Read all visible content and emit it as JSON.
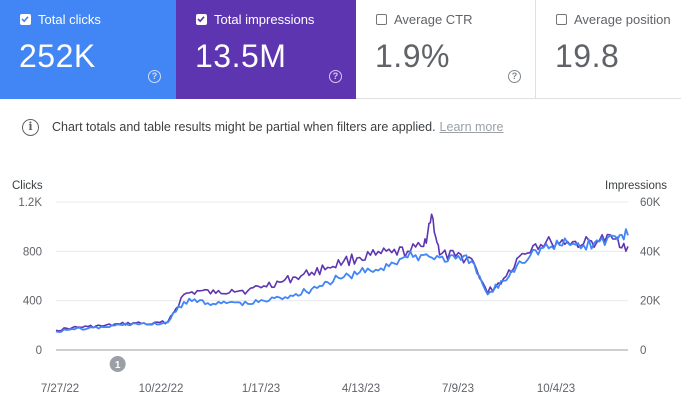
{
  "metrics": {
    "clicks": {
      "label": "Total clicks",
      "value": "252K",
      "checked": true,
      "color": "#4285f4"
    },
    "impressions": {
      "label": "Total impressions",
      "value": "13.5M",
      "checked": true,
      "color": "#5e35b1"
    },
    "ctr": {
      "label": "Average CTR",
      "value": "1.9%",
      "checked": false
    },
    "position": {
      "label": "Average position",
      "value": "19.8",
      "checked": false
    }
  },
  "help_glyph": "?",
  "notice": {
    "icon": "info-icon",
    "glyph": "i",
    "text": "Chart totals and table results might be partial when filters are applied.",
    "link": "Learn more"
  },
  "annotation": {
    "label": "1",
    "date": "2022-09-19"
  },
  "chart_data": {
    "type": "line",
    "left_axis": {
      "title": "Clicks",
      "ticks": [
        0,
        400,
        800,
        1200
      ],
      "tick_labels": [
        "0",
        "400",
        "800",
        "1.2K"
      ],
      "range": [
        0,
        1200
      ]
    },
    "right_axis": {
      "title": "Impressions",
      "ticks": [
        0,
        20000,
        40000,
        60000
      ],
      "tick_labels": [
        "0",
        "20K",
        "40K",
        "60K"
      ],
      "range": [
        0,
        60000
      ]
    },
    "x_range": [
      "2022-07-27",
      "2023-12-10"
    ],
    "x_tick_labels": [
      "7/27/22",
      "10/22/22",
      "1/17/23",
      "4/13/23",
      "7/9/23",
      "10/4/23"
    ],
    "grid": true,
    "series": [
      {
        "name": "Clicks",
        "axis": "left",
        "color": "#4285f4",
        "points": [
          [
            "2022-07-27",
            150
          ],
          [
            "2022-08-10",
            170
          ],
          [
            "2022-08-24",
            175
          ],
          [
            "2022-09-07",
            185
          ],
          [
            "2022-09-21",
            205
          ],
          [
            "2022-10-05",
            215
          ],
          [
            "2022-10-19",
            205
          ],
          [
            "2022-11-02",
            225
          ],
          [
            "2022-11-16",
            390
          ],
          [
            "2022-11-30",
            405
          ],
          [
            "2022-12-14",
            370
          ],
          [
            "2022-12-28",
            390
          ],
          [
            "2023-01-11",
            375
          ],
          [
            "2023-01-25",
            400
          ],
          [
            "2023-02-08",
            425
          ],
          [
            "2023-02-22",
            455
          ],
          [
            "2023-03-08",
            495
          ],
          [
            "2023-03-22",
            550
          ],
          [
            "2023-04-05",
            590
          ],
          [
            "2023-04-19",
            630
          ],
          [
            "2023-05-03",
            650
          ],
          [
            "2023-05-17",
            710
          ],
          [
            "2023-05-31",
            750
          ],
          [
            "2023-06-14",
            770
          ],
          [
            "2023-06-28",
            750
          ],
          [
            "2023-07-12",
            740
          ],
          [
            "2023-07-26",
            720
          ],
          [
            "2023-08-09",
            450
          ],
          [
            "2023-08-23",
            560
          ],
          [
            "2023-09-06",
            720
          ],
          [
            "2023-09-20",
            810
          ],
          [
            "2023-10-04",
            840
          ],
          [
            "2023-10-18",
            870
          ],
          [
            "2023-11-01",
            850
          ],
          [
            "2023-11-15",
            880
          ],
          [
            "2023-11-29",
            920
          ],
          [
            "2023-12-10",
            930
          ]
        ]
      },
      {
        "name": "Impressions",
        "axis": "right",
        "color": "#5e35b1",
        "points": [
          [
            "2022-07-27",
            8000
          ],
          [
            "2022-08-10",
            9000
          ],
          [
            "2022-08-24",
            9500
          ],
          [
            "2022-09-07",
            9800
          ],
          [
            "2022-09-21",
            10500
          ],
          [
            "2022-10-05",
            11000
          ],
          [
            "2022-10-19",
            10500
          ],
          [
            "2022-11-02",
            11500
          ],
          [
            "2022-11-16",
            22500
          ],
          [
            "2022-11-30",
            24000
          ],
          [
            "2022-12-14",
            23000
          ],
          [
            "2022-12-28",
            24500
          ],
          [
            "2023-01-11",
            24000
          ],
          [
            "2023-01-25",
            26000
          ],
          [
            "2023-02-08",
            27500
          ],
          [
            "2023-02-22",
            29500
          ],
          [
            "2023-03-08",
            31500
          ],
          [
            "2023-03-22",
            33500
          ],
          [
            "2023-04-05",
            36000
          ],
          [
            "2023-04-19",
            37500
          ],
          [
            "2023-05-03",
            38500
          ],
          [
            "2023-05-17",
            39500
          ],
          [
            "2023-05-31",
            40000
          ],
          [
            "2023-06-14",
            42000
          ],
          [
            "2023-06-21",
            55000
          ],
          [
            "2023-06-28",
            38500
          ],
          [
            "2023-07-12",
            38000
          ],
          [
            "2023-07-26",
            37000
          ],
          [
            "2023-08-09",
            23000
          ],
          [
            "2023-08-23",
            29000
          ],
          [
            "2023-09-06",
            38000
          ],
          [
            "2023-09-20",
            43000
          ],
          [
            "2023-10-04",
            43500
          ],
          [
            "2023-10-18",
            44000
          ],
          [
            "2023-11-01",
            43000
          ],
          [
            "2023-11-15",
            44500
          ],
          [
            "2023-11-29",
            45000
          ],
          [
            "2023-12-10",
            42000
          ]
        ]
      }
    ]
  }
}
